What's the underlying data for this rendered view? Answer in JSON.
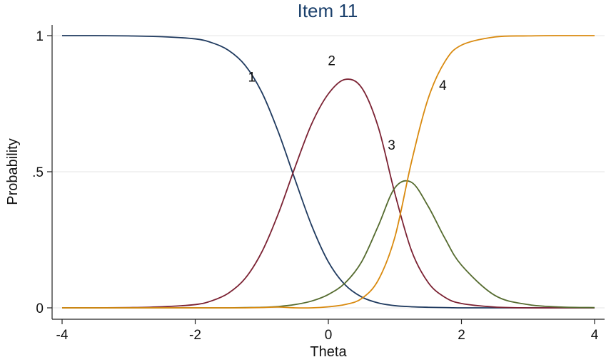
{
  "chart_data": {
    "type": "line",
    "title": "Item 11",
    "xlabel": "Theta",
    "ylabel": "Probability",
    "xlim": [
      -4,
      4
    ],
    "ylim": [
      0,
      1
    ],
    "x_ticks": [
      {
        "value": -4,
        "label": "-4"
      },
      {
        "value": -2,
        "label": "-2"
      },
      {
        "value": 0,
        "label": "0"
      },
      {
        "value": 2,
        "label": "2"
      },
      {
        "value": 4,
        "label": "4"
      }
    ],
    "y_ticks": [
      {
        "value": 0,
        "label": "0"
      },
      {
        "value": 0.5,
        "label": ".5"
      },
      {
        "value": 1,
        "label": "1"
      }
    ],
    "grid": true,
    "legend": "none",
    "x": [
      -4,
      -3.5,
      -3,
      -2.5,
      -2,
      -1.75,
      -1.5,
      -1.25,
      -1,
      -0.75,
      -0.5,
      -0.25,
      0,
      0.25,
      0.5,
      0.75,
      1,
      1.25,
      1.5,
      1.75,
      2,
      2.5,
      3,
      3.5,
      4
    ],
    "series": [
      {
        "name": "1",
        "color": "#1f3a5f",
        "label_at": [
          -1.15,
          0.85
        ],
        "values": [
          1.0,
          1.0,
          0.999,
          0.996,
          0.988,
          0.974,
          0.946,
          0.891,
          0.792,
          0.645,
          0.471,
          0.302,
          0.169,
          0.085,
          0.04,
          0.018,
          0.008,
          0.004,
          0.002,
          0.001,
          0.0,
          0.0,
          0.0,
          0.0,
          0.0
        ]
      },
      {
        "name": "2",
        "color": "#7b2233",
        "label_at": [
          0.05,
          0.91
        ],
        "values": [
          0.0,
          0.0,
          0.001,
          0.004,
          0.012,
          0.026,
          0.054,
          0.108,
          0.205,
          0.347,
          0.517,
          0.676,
          0.786,
          0.839,
          0.809,
          0.664,
          0.42,
          0.21,
          0.093,
          0.039,
          0.016,
          0.003,
          0.0,
          0.0,
          0.0
        ]
      },
      {
        "name": "3",
        "color": "#556b2f",
        "label_at": [
          0.95,
          0.6
        ],
        "values": [
          0.0,
          0.0,
          0.0,
          0.0,
          0.0,
          0.0,
          0.0,
          0.001,
          0.002,
          0.005,
          0.012,
          0.025,
          0.049,
          0.091,
          0.169,
          0.301,
          0.441,
          0.461,
          0.373,
          0.256,
          0.157,
          0.046,
          0.012,
          0.003,
          0.001
        ]
      },
      {
        "name": "4",
        "color": "#d98a0f",
        "label_at": [
          1.72,
          0.82
        ],
        "values": [
          0.0,
          0.0,
          0.0,
          0.0,
          0.0,
          0.0,
          0.0,
          0.0,
          0.001,
          0.003,
          0.0,
          0.0,
          0.004,
          0.012,
          0.034,
          0.102,
          0.26,
          0.537,
          0.769,
          0.904,
          0.965,
          0.995,
          0.999,
          1.0,
          1.0
        ]
      }
    ]
  }
}
